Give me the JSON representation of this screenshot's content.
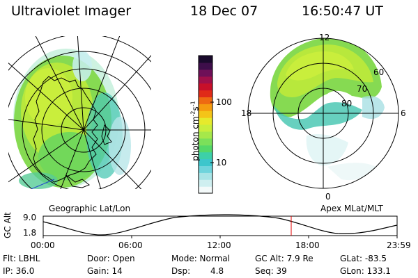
{
  "header": {
    "instrument": "Ultraviolet Imager",
    "date": "18 Dec 07",
    "time": "16:50:47 UT"
  },
  "geo_panel": {
    "label": "Geographic Lat/Lon"
  },
  "mag_panel": {
    "label": "Apex MLat/MLT",
    "mlt_labels": [
      "12",
      "18",
      "6",
      "0"
    ],
    "lat_labels": [
      "60",
      "70",
      "80"
    ]
  },
  "colorbar": {
    "unit_label": "photon cm",
    "unit_sup1": "-2",
    "unit_mid": "s",
    "unit_sup2": "-1",
    "ticks": [
      "100",
      "10"
    ],
    "colors": [
      "#f4fafa",
      "#cfeff0",
      "#a8e4e6",
      "#6fd4dc",
      "#3dc6cc",
      "#3dd0a8",
      "#54d868",
      "#7be05a",
      "#a6e84a",
      "#c9ee3c",
      "#e6ea2c",
      "#f4c418",
      "#f59c10",
      "#ee6a12",
      "#e02a18",
      "#c8102a",
      "#a0104a",
      "#6e1058",
      "#3e0e4a",
      "#1a0a2c"
    ],
    "data_colors": {
      "main": "#9be04a",
      "mid": "#c2ea34",
      "dense": "#66d860",
      "edge": "#45c8b8",
      "faint": "#a8e0e4"
    }
  },
  "timeline": {
    "axis_label": "GC Alt",
    "y_ticks": [
      "9.0",
      "1.8"
    ],
    "time_ticks": [
      "00:00",
      "06:00",
      "12:00",
      "18:00",
      "23:59"
    ],
    "current_marker_color": "#e00000"
  },
  "info": {
    "flt": "Flt: LBHL",
    "ip": "IP: 36.0",
    "door": "Door: Open",
    "gain": "Gain: 14",
    "mode": "Mode: Normal",
    "dsp": "Dsp:",
    "dsp_value": "4.8",
    "gc_alt": "GC Alt: 7.9 Re",
    "seq": "Seq: 39",
    "glat": "GLat: -83.5",
    "glon": "GLon: 133.1"
  }
}
